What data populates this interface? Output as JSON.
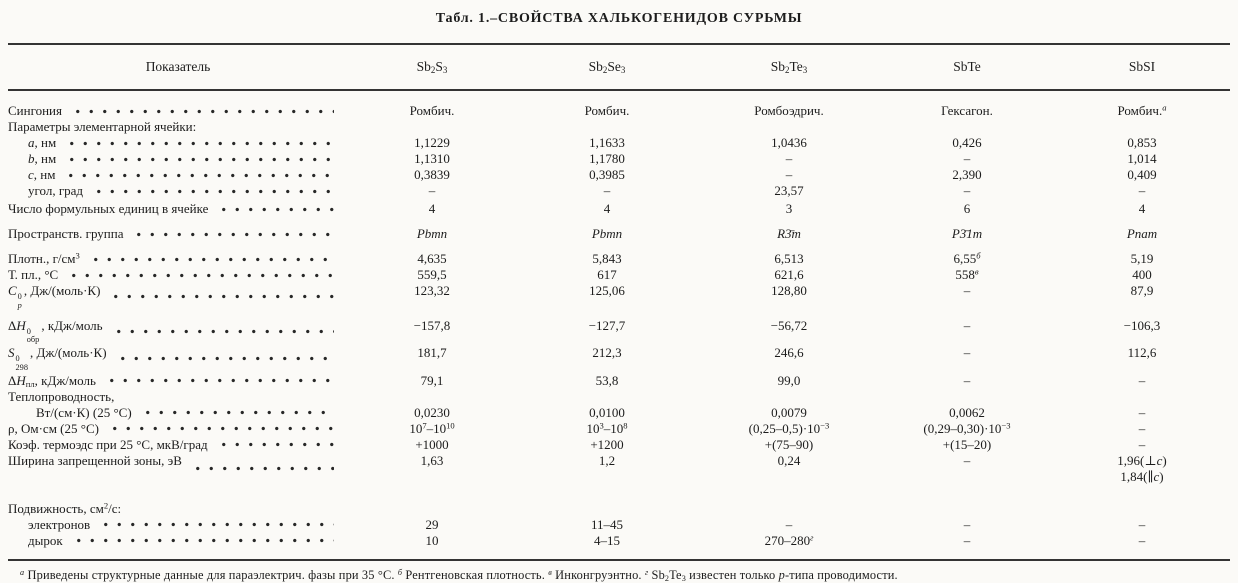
{
  "title": "Табл. 1.–СВОЙСТВА ХАЛЬКОГЕНИДОВ СУРЬМЫ",
  "columns": [
    "Показатель",
    "Sb~2~S~3~",
    "Sb~2~Se~3~",
    "Sb~2~Te~3~",
    "SbTe",
    "SbSI"
  ],
  "rows": [
    {
      "label": "Сингония",
      "indent": 0,
      "dots": true,
      "sp": 0,
      "values": [
        "Ромбич.",
        "Ромбич.",
        "Ромбоэдрич.",
        "Гексагон.",
        "Ромбич.^*а*^"
      ]
    },
    {
      "label": "Параметры элементарной ячейки:",
      "indent": 0,
      "dots": false,
      "sp": 0,
      "values": [
        "",
        "",
        "",
        "",
        ""
      ]
    },
    {
      "label": "*a*, нм",
      "indent": 1,
      "dots": true,
      "sp": 0,
      "values": [
        "1,1229",
        "1,1633",
        "1,0436",
        "0,426",
        "0,853"
      ]
    },
    {
      "label": "*b*, нм",
      "indent": 1,
      "dots": true,
      "sp": 0,
      "values": [
        "1,1310",
        "1,1780",
        "–",
        "–",
        "1,014"
      ]
    },
    {
      "label": "*c*, нм",
      "indent": 1,
      "dots": true,
      "sp": 0,
      "values": [
        "0,3839",
        "0,3985",
        "–",
        "2,390",
        "0,409"
      ]
    },
    {
      "label": "угол, град",
      "indent": 1,
      "dots": true,
      "sp": 0,
      "values": [
        "–",
        "–",
        "23,57",
        "–",
        "–"
      ]
    },
    {
      "label": "Число формульных единиц в ячейке",
      "indent": 0,
      "dots": true,
      "sp": 2,
      "values": [
        "4",
        "4",
        "3",
        "6",
        "4"
      ]
    },
    {
      "label": "Пространств. группа",
      "indent": 0,
      "dots": true,
      "sp": 9,
      "values": [
        "*Pbmn*",
        "*Pbmn*",
        "*R3̄m*",
        "*P3̄1m*",
        "*Pnam*"
      ]
    },
    {
      "label": "Плотн., г/см^3^",
      "indent": 0,
      "dots": true,
      "sp": 9,
      "values": [
        "4,635",
        "5,843",
        "6,513",
        "6,55^*б*^",
        "5,19"
      ]
    },
    {
      "label": "Т. пл., °С",
      "indent": 0,
      "dots": true,
      "sp": 0,
      "values": [
        "559,5",
        "617",
        "621,6",
        "558^*в*^",
        "400"
      ]
    },
    {
      "label": "*C*{0|*p*}, Дж/(моль·К)",
      "indent": 0,
      "dots": true,
      "sp": 0,
      "values": [
        "123,32",
        "125,06",
        "128,80",
        "–",
        "87,9"
      ]
    },
    {
      "label": "Δ*H*{0|обр}, кДж/моль",
      "indent": 0,
      "dots": true,
      "sp": 7,
      "values": [
        "−157,8",
        "−127,7",
        "−56,72",
        "–",
        "−106,3"
      ]
    },
    {
      "label": "*S*{0|298}, Дж/(моль·К)",
      "indent": 0,
      "dots": true,
      "sp": 0,
      "values": [
        "181,7",
        "212,3",
        "246,6",
        "–",
        "112,6"
      ]
    },
    {
      "label": "Δ*H*~пл~, кДж/моль",
      "indent": 0,
      "dots": true,
      "sp": 0,
      "values": [
        "79,1",
        "53,8",
        "99,0",
        "–",
        "–"
      ]
    },
    {
      "label": "Теплопроводность,",
      "indent": 0,
      "dots": false,
      "sp": 0,
      "values": [
        "",
        "",
        "",
        "",
        ""
      ]
    },
    {
      "label": "Вт/(см·К) (25 °С)",
      "indent": 2,
      "dots": true,
      "sp": 0,
      "values": [
        "0,0230",
        "0,0100",
        "0,0079",
        "0,0062",
        "–"
      ]
    },
    {
      "label": "ρ, Ом·см (25 °С)",
      "indent": 0,
      "dots": true,
      "sp": 0,
      "values": [
        "10^7^–10^10^",
        "10^3^–10^8^",
        "(0,25–0,5)·10^−3^",
        "(0,29–0,30)·10^−3^",
        "–"
      ]
    },
    {
      "label": "Коэф. термоэдс при 25 °С, мкВ/град",
      "indent": 0,
      "dots": true,
      "sp": 0,
      "values": [
        "+1000",
        "+1200",
        "+(75–90)",
        "+(15–20)",
        "–"
      ]
    },
    {
      "label": "Ширина запрещенной зоны, эВ",
      "indent": 0,
      "dots": true,
      "sp": 0,
      "values": [
        "1,63",
        "1,2",
        "0,24",
        "–",
        "1,96(⊥*c*)\n1,84(∥*c*)"
      ]
    },
    {
      "label": "Подвижность, см^2^/с:",
      "indent": 0,
      "dots": false,
      "sp": 16,
      "values": [
        "",
        "",
        "",
        "",
        ""
      ]
    },
    {
      "label": "электронов",
      "indent": 1,
      "dots": true,
      "sp": 0,
      "values": [
        "29",
        "11–45",
        "–",
        "–",
        "–"
      ]
    },
    {
      "label": "дырок",
      "indent": 1,
      "dots": true,
      "sp": 0,
      "values": [
        "10",
        "4–15",
        "270–280^*г*^",
        "–",
        "–"
      ]
    }
  ],
  "footnote": "^*а*^ Приведены структурные данные для параэлектрич. фазы при 35 °С. ^*б*^ Рентгеновская плотность. ^*в*^ Инконгруэнтно. ^*г*^ Sb~2~Te~3~ известен только *p*-типа проводимости.",
  "colors": {
    "paper": "#fbfaf7",
    "ink": "#1c1c1c",
    "rule": "#343434"
  }
}
